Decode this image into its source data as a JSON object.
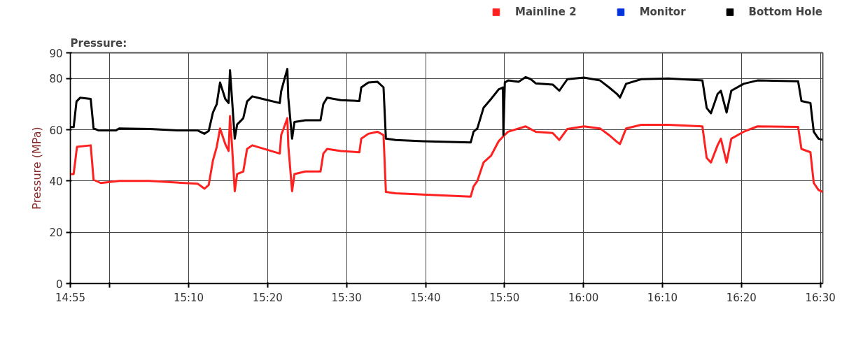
{
  "chart_data": {
    "type": "line",
    "title": "Pressure:",
    "ylabel": "Pressure (MPa)",
    "xlim": [
      14.917,
      16.505
    ],
    "ylim": [
      0,
      90
    ],
    "xticks": [
      {
        "value": 14.917,
        "label": "14:55"
      },
      {
        "value": 15.0,
        "label": null
      },
      {
        "value": 15.1667,
        "label": "15:10"
      },
      {
        "value": 15.3333,
        "label": "15:20"
      },
      {
        "value": 15.5,
        "label": "15:30"
      },
      {
        "value": 15.6667,
        "label": "15:40"
      },
      {
        "value": 15.8333,
        "label": "15:50"
      },
      {
        "value": 16.0,
        "label": "16:00"
      },
      {
        "value": 16.1667,
        "label": "16:10"
      },
      {
        "value": 16.3333,
        "label": "16:20"
      },
      {
        "value": 16.5,
        "label": "16:30"
      }
    ],
    "yticks": [
      0,
      20,
      40,
      60,
      80,
      90
    ],
    "grid": true,
    "legend": "top right",
    "series": [
      {
        "name": "Mainline 2",
        "color": "#ff2020",
        "x": [
          14.917,
          14.924,
          14.931,
          14.96,
          14.966,
          14.981,
          15.02,
          15.085,
          15.186,
          15.2,
          15.209,
          15.218,
          15.226,
          15.233,
          15.244,
          15.251,
          15.254,
          15.258,
          15.264,
          15.269,
          15.282,
          15.29,
          15.301,
          15.359,
          15.362,
          15.37,
          15.375,
          15.377,
          15.385,
          15.39,
          15.413,
          15.445,
          15.451,
          15.459,
          15.488,
          15.527,
          15.531,
          15.546,
          15.565,
          15.578,
          15.583,
          15.604,
          15.661,
          15.762,
          15.768,
          15.776,
          15.789,
          15.805,
          15.821,
          15.83,
          15.841,
          15.878,
          15.899,
          15.935,
          15.949,
          15.966,
          16.001,
          16.035,
          16.054,
          16.071,
          16.077,
          16.09,
          16.122,
          16.179,
          16.251,
          16.26,
          16.269,
          16.283,
          16.29,
          16.302,
          16.312,
          16.338,
          16.367,
          16.453,
          16.46,
          16.479,
          16.486,
          16.496,
          16.505
        ],
        "values": [
          42.7,
          42.7,
          53.3,
          53.9,
          40.5,
          39.2,
          40,
          40,
          38.9,
          37,
          38.4,
          48,
          53.3,
          60.5,
          54.4,
          51.7,
          65.3,
          54.4,
          36,
          42.7,
          43.7,
          52.5,
          53.9,
          50.7,
          57.9,
          61.9,
          64.5,
          53.9,
          36,
          42.7,
          43.7,
          43.7,
          50.7,
          52.5,
          51.7,
          51.2,
          56.5,
          58.4,
          59.2,
          57.9,
          35.7,
          35.2,
          34.7,
          33.9,
          37.9,
          40,
          47.2,
          49.9,
          55.5,
          57.3,
          59.2,
          61.3,
          59.2,
          58.7,
          56,
          60.3,
          61.3,
          60.5,
          57.9,
          55.2,
          54.4,
          60.5,
          61.9,
          61.9,
          61.3,
          49,
          47.2,
          53.9,
          56.5,
          47.2,
          56.5,
          59.2,
          61.3,
          61.1,
          52.5,
          51.2,
          39.2,
          36.5,
          35.7
        ]
      },
      {
        "name": "Monitor",
        "color": "#0033dd"
      },
      {
        "name": "Bottom Hole",
        "color": "#000000",
        "x": [
          14.917,
          14.924,
          14.93,
          14.938,
          14.96,
          14.966,
          14.977,
          15.013,
          15.02,
          15.085,
          15.143,
          15.186,
          15.2,
          15.209,
          15.218,
          15.226,
          15.233,
          15.244,
          15.251,
          15.254,
          15.258,
          15.264,
          15.269,
          15.277,
          15.282,
          15.29,
          15.301,
          15.323,
          15.359,
          15.362,
          15.37,
          15.375,
          15.377,
          15.385,
          15.39,
          15.413,
          15.445,
          15.451,
          15.459,
          15.488,
          15.527,
          15.531,
          15.546,
          15.565,
          15.578,
          15.583,
          15.604,
          15.661,
          15.719,
          15.762,
          15.768,
          15.776,
          15.789,
          15.805,
          15.821,
          15.83,
          15.831,
          15.834,
          15.841,
          15.863,
          15.878,
          15.889,
          15.899,
          15.935,
          15.949,
          15.966,
          16.001,
          16.035,
          16.054,
          16.071,
          16.077,
          16.09,
          16.122,
          16.179,
          16.251,
          16.26,
          16.269,
          16.283,
          16.29,
          16.302,
          16.312,
          16.338,
          16.367,
          16.453,
          16.46,
          16.479,
          16.486,
          16.496,
          16.505
        ],
        "values": [
          61,
          61,
          71,
          72.5,
          72,
          60.5,
          59.7,
          59.7,
          60.5,
          60.3,
          59.7,
          59.7,
          58.4,
          59.5,
          66.7,
          70,
          78.4,
          72,
          70.4,
          83.2,
          72.5,
          56.5,
          62,
          63.5,
          64.5,
          71,
          73,
          72,
          70.4,
          75,
          80.5,
          83.7,
          72.5,
          56.5,
          63,
          63.7,
          63.7,
          70,
          72.5,
          71.5,
          71.2,
          76.5,
          78.4,
          78.7,
          76.5,
          56.5,
          56,
          55.5,
          55.2,
          55,
          59.2,
          60.5,
          68.5,
          72,
          75.7,
          76.5,
          57.9,
          78.4,
          79.2,
          78.7,
          80.5,
          79.7,
          78.1,
          77.6,
          75.2,
          79.7,
          80.3,
          79.2,
          76.5,
          73.9,
          72.5,
          77.9,
          79.7,
          80,
          79.2,
          68.5,
          66.4,
          73.9,
          75.2,
          66.7,
          75.2,
          77.9,
          79.2,
          78.9,
          71.2,
          70.4,
          59.2,
          56.5,
          56
        ]
      }
    ]
  }
}
